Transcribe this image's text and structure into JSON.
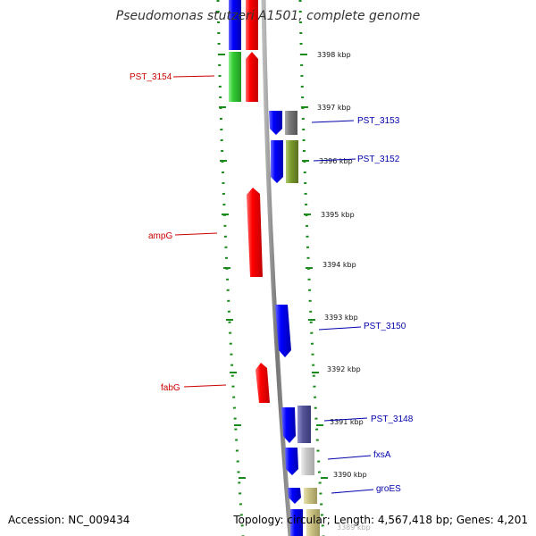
{
  "title": "Pseudomonas stutzeri A1501, complete genome",
  "footer": {
    "accession": "Accession: NC_009434",
    "topology": "Topology: circular; Length: 4,567,418 bp; Genes: 4,201"
  },
  "colors": {
    "blue": "#0000ff",
    "red": "#ff0000",
    "green": "#33cc33",
    "gray": "#777777",
    "olive": "#7a9a2a",
    "purple": "#555599",
    "lightgray": "#c8c8c8",
    "khaki": "#c8c080",
    "tick_green": "#1a8a1a",
    "label_red": "#cc0000",
    "label_blue": "#0000aa"
  },
  "kbp_labels": [
    "3398 kbp",
    "3397 kbp",
    "3396 kbp",
    "3395 kbp",
    "3394 kbp",
    "3393 kbp",
    "3392 kbp",
    "3391 kbp",
    "3390 kbp",
    "3389 kbp"
  ],
  "gene_labels": {
    "PST_3154": "PST_3154",
    "PST_3153": "PST_3153",
    "PST_3152": "PST_3152",
    "ampG": "ampG",
    "PST_3150": "PST_3150",
    "fabG": "fabG",
    "PST_3148": "PST_3148",
    "fxsA": "fxsA",
    "groES": "groES"
  }
}
